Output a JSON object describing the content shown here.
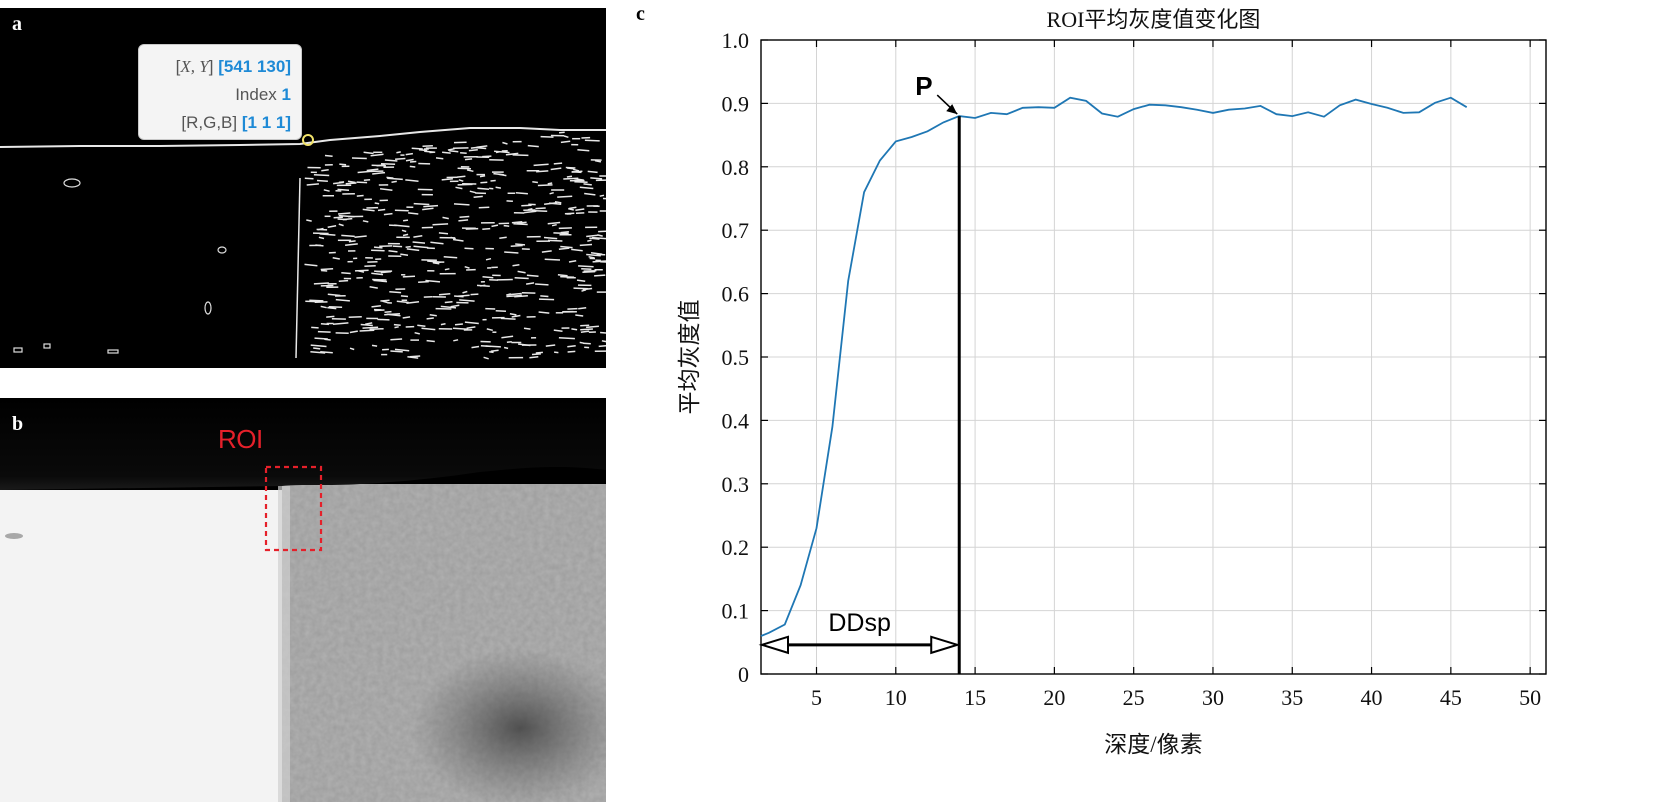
{
  "panels": {
    "a": "a",
    "b": "b",
    "c": "c"
  },
  "datatip": {
    "xy_label_open": "[",
    "xy_label_vars": "X, Y",
    "xy_label_close": "]",
    "xy_value": "[541 130]",
    "index_label": "Index",
    "index_value": "1",
    "rgb_label": "[R,G,B]",
    "rgb_value": "[1 1 1]"
  },
  "roi": {
    "label": "ROI",
    "color": "#e5202a"
  },
  "chart_data": {
    "type": "line",
    "title": "ROI平均灰度值变化图",
    "xlabel": "深度/像素",
    "ylabel": "平均灰度值",
    "xlim": [
      1.5,
      51
    ],
    "ylim": [
      0,
      1.0
    ],
    "xticks": [
      5,
      10,
      15,
      20,
      25,
      30,
      35,
      40,
      45,
      50
    ],
    "yticks": [
      0,
      0.1,
      0.2,
      0.3,
      0.4,
      0.5,
      0.6,
      0.7,
      0.8,
      0.9,
      1.0
    ],
    "ytick_labels": [
      "0",
      "0.1",
      "0.2",
      "0.3",
      "0.4",
      "0.5",
      "0.6",
      "0.7",
      "0.8",
      "0.9",
      "1.0"
    ],
    "grid": true,
    "line_color": "#1f77b4",
    "series": [
      {
        "x": [
          1.5,
          2,
          3,
          4,
          5,
          6,
          7,
          8,
          9,
          10,
          11,
          12,
          13,
          14,
          15,
          16,
          17,
          18,
          19,
          20,
          21,
          22,
          23,
          24,
          25,
          26,
          27,
          28,
          29,
          30,
          31,
          32,
          33,
          34,
          35,
          36,
          37,
          38,
          39,
          40,
          41,
          42,
          43,
          44,
          45,
          46
        ],
        "values": [
          0.06,
          0.065,
          0.078,
          0.14,
          0.23,
          0.39,
          0.62,
          0.76,
          0.81,
          0.84,
          0.847,
          0.856,
          0.87,
          0.88,
          0.877,
          0.885,
          0.883,
          0.893,
          0.894,
          0.893,
          0.909,
          0.904,
          0.884,
          0.879,
          0.891,
          0.898,
          0.897,
          0.894,
          0.89,
          0.885,
          0.89,
          0.892,
          0.896,
          0.883,
          0.88,
          0.886,
          0.879,
          0.897,
          0.906,
          0.899,
          0.893,
          0.885,
          0.886,
          0.901,
          0.909,
          0.894
        ]
      }
    ],
    "annotations": {
      "point_label": "P",
      "point_x": 14,
      "point_y": 0.88,
      "span_label": "DDsp",
      "span_from": 1.5,
      "span_to": 14
    }
  }
}
